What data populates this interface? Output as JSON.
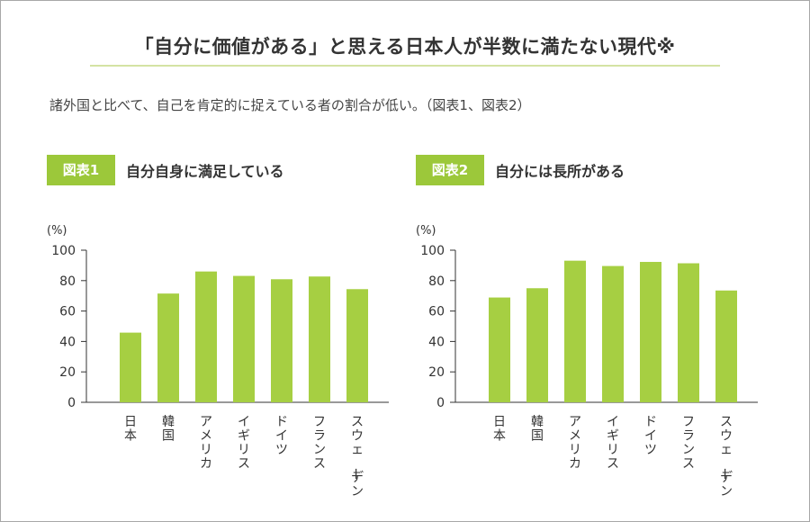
{
  "header": {
    "title": "「自分に価値がある」と思える日本人が半数に満たない現代※",
    "subtitle": "諸外国と比べて、自己を肯定的に捉えている者の割合が低い。（図表1、図表2）"
  },
  "colors": {
    "bar": "#a6cf42",
    "badge": "#9cc83a",
    "rule": "#d4e3a3"
  },
  "chart_data": [
    {
      "type": "bar",
      "badge": "図表1",
      "title": "自分自身に満足している",
      "unit": "(%)",
      "categories": [
        "日本",
        "韓国",
        "アメリカ",
        "イギリス",
        "ドイツ",
        "フランス",
        "スウェーデン"
      ],
      "values": [
        45.8,
        71.5,
        86.0,
        83.1,
        80.9,
        82.7,
        74.4
      ],
      "ylim": [
        0,
        100
      ],
      "yticks": [
        0,
        20,
        40,
        60,
        80,
        100
      ]
    },
    {
      "type": "bar",
      "badge": "図表2",
      "title": "自分には長所がある",
      "unit": "(%)",
      "categories": [
        "日本",
        "韓国",
        "アメリカ",
        "イギリス",
        "ドイツ",
        "フランス",
        "スウェーデン"
      ],
      "values": [
        68.9,
        75.0,
        93.1,
        89.6,
        92.3,
        91.4,
        73.5
      ],
      "ylim": [
        0,
        100
      ],
      "yticks": [
        0,
        20,
        40,
        60,
        80,
        100
      ]
    }
  ]
}
